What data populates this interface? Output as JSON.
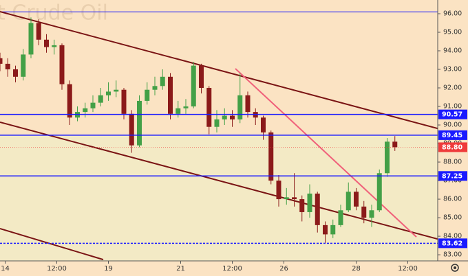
{
  "chart_data": {
    "type": "candlestick",
    "title": "t Crude Oil",
    "x": [
      0,
      1.5,
      3,
      4.5,
      6,
      7.5,
      9,
      10.5,
      12,
      13.5,
      15,
      16.5,
      18,
      19.5,
      21,
      22.5,
      24,
      25.5,
      27,
      28.5,
      30,
      31.5,
      33,
      34.5,
      36,
      37.5,
      39,
      40.5,
      42,
      43.5,
      45,
      46.5,
      48,
      49.5,
      51,
      52.5,
      54,
      55.5,
      57,
      58.5,
      60,
      61.5,
      63,
      64.5,
      66,
      67.5,
      69,
      70.5,
      72,
      73.5,
      75,
      76.5
    ],
    "open": [
      93.6,
      93.3,
      93.0,
      92.6,
      93.8,
      95.5,
      94.6,
      94.2,
      94.3,
      92.2,
      90.4,
      90.7,
      90.9,
      91.2,
      91.6,
      91.8,
      91.9,
      90.6,
      88.9,
      91.3,
      91.9,
      92.1,
      92.6,
      90.6,
      90.9,
      91.0,
      93.2,
      92.0,
      89.9,
      90.3,
      90.5,
      90.3,
      91.6,
      90.7,
      90.4,
      89.6,
      87.0,
      86.0,
      86.1,
      86.0,
      85.3,
      86.3,
      84.6,
      84.1,
      84.6,
      85.4,
      86.4,
      85.6,
      85.0,
      85.4,
      87.4,
      89.1
    ],
    "high": [
      93.9,
      93.6,
      93.2,
      94.1,
      95.8,
      95.7,
      94.9,
      94.6,
      94.4,
      92.4,
      91.0,
      91.2,
      91.6,
      92.0,
      92.3,
      92.4,
      92.0,
      90.8,
      91.6,
      92.3,
      92.6,
      93.0,
      92.8,
      91.3,
      91.4,
      93.4,
      93.3,
      92.1,
      90.8,
      90.9,
      90.8,
      92.8,
      91.8,
      90.9,
      90.5,
      89.7,
      87.3,
      86.6,
      87.4,
      86.2,
      86.8,
      86.4,
      84.8,
      84.9,
      85.7,
      86.9,
      86.6,
      85.9,
      85.7,
      87.6,
      89.3,
      89.4
    ],
    "low": [
      92.9,
      92.6,
      92.3,
      92.4,
      93.6,
      94.3,
      93.9,
      93.8,
      91.9,
      90.0,
      90.2,
      90.4,
      90.7,
      91.0,
      91.3,
      91.5,
      90.3,
      88.5,
      88.8,
      91.1,
      91.6,
      91.9,
      90.3,
      90.4,
      90.6,
      90.9,
      91.7,
      89.5,
      89.6,
      90.0,
      89.9,
      90.1,
      90.4,
      90.0,
      89.2,
      86.8,
      85.6,
      85.7,
      85.6,
      84.8,
      85.0,
      84.2,
      83.6,
      83.9,
      84.5,
      85.3,
      85.4,
      84.7,
      84.5,
      85.3,
      87.2,
      88.6
    ],
    "close": [
      93.3,
      93.0,
      92.6,
      93.8,
      95.5,
      94.6,
      94.2,
      94.3,
      92.2,
      90.4,
      90.7,
      90.9,
      91.2,
      91.6,
      91.8,
      91.9,
      90.6,
      88.9,
      91.3,
      91.9,
      92.1,
      92.6,
      90.6,
      90.9,
      91.0,
      93.2,
      92.0,
      89.9,
      90.3,
      90.5,
      90.3,
      91.6,
      90.7,
      90.4,
      89.6,
      87.0,
      86.0,
      86.1,
      86.0,
      85.3,
      86.3,
      84.6,
      84.1,
      84.6,
      85.4,
      86.4,
      85.6,
      85.0,
      85.4,
      87.4,
      89.1,
      88.8
    ],
    "up_color": "#43a047",
    "down_color": "#8b1a1a",
    "xlim": [
      0,
      84.8
    ],
    "xticks": [
      {
        "value": 1,
        "label": "14"
      },
      {
        "value": 11,
        "label": "12:00"
      },
      {
        "value": 21,
        "label": "19"
      },
      {
        "value": 35,
        "label": "21"
      },
      {
        "value": 45,
        "label": "12:00"
      },
      {
        "value": 55,
        "label": "26"
      },
      {
        "value": 69,
        "label": "28"
      },
      {
        "value": 79,
        "label": "12:00"
      }
    ],
    "ylim": [
      82.67,
      96.74
    ],
    "yticks": [
      {
        "value": 83,
        "label": "83.00"
      },
      {
        "value": 84,
        "label": "84.00"
      },
      {
        "value": 85,
        "label": "85.00"
      },
      {
        "value": 86,
        "label": "86.00"
      },
      {
        "value": 87,
        "label": "87.00"
      },
      {
        "value": 88,
        "label": "88.00"
      },
      {
        "value": 89,
        "label": "89.00"
      },
      {
        "value": 90,
        "label": "90.00"
      },
      {
        "value": 91,
        "label": "91.00"
      },
      {
        "value": 92,
        "label": "92.00"
      },
      {
        "value": 93,
        "label": "93.00"
      },
      {
        "value": 94,
        "label": "94.00"
      },
      {
        "value": 95,
        "label": "95.00"
      },
      {
        "value": 96,
        "label": "96.00"
      }
    ],
    "top_line": 96.1,
    "levels": [
      90.57,
      89.45,
      87.25,
      83.62
    ],
    "level_styles": [
      "solid",
      "solid",
      "solid",
      "dashed"
    ],
    "level_color": "#1a1aff",
    "last_price": {
      "value": 88.8,
      "label": "88.80"
    },
    "last_price_color": "#ef3b3b",
    "trendlines": [
      {
        "x": [
          0,
          84.8
        ],
        "y": [
          96.11,
          89.81
        ],
        "color": "#7a1414"
      },
      {
        "x": [
          0,
          84.8
        ],
        "y": [
          90.15,
          83.85
        ],
        "color": "#7a1414"
      },
      {
        "x": [
          0,
          20
        ],
        "y": [
          84.41,
          82.74
        ],
        "color": "#7a1414"
      },
      {
        "x": [
          45.6,
          80.67
        ],
        "y": [
          93.04,
          83.96
        ],
        "color": "#f0607a"
      }
    ]
  }
}
